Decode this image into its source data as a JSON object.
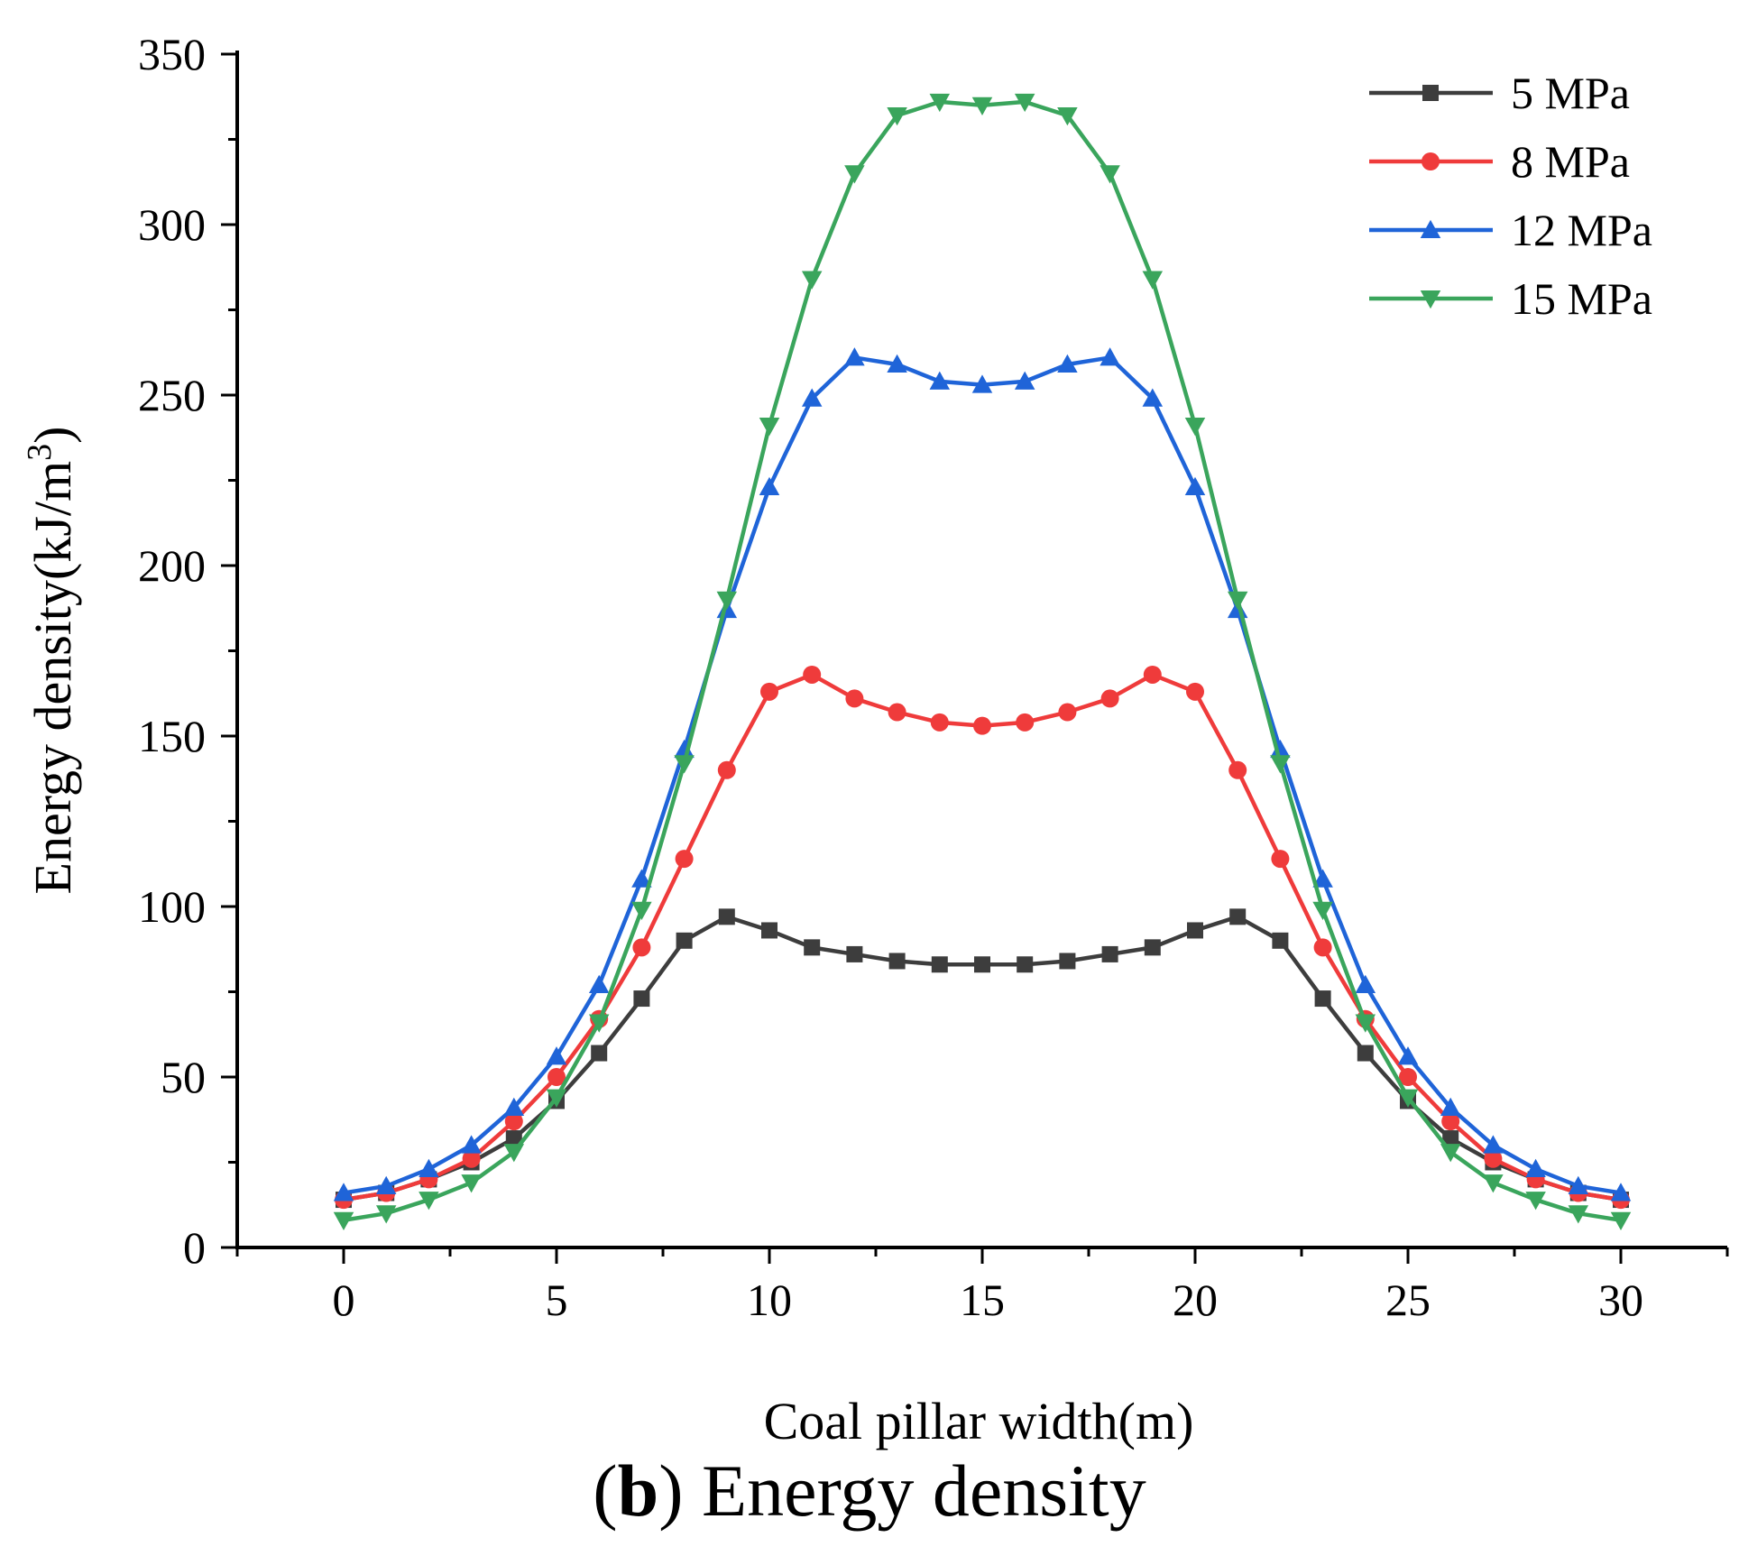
{
  "chart_data": {
    "type": "line",
    "xlabel": "Coal pillar width(m)",
    "ylabel_main": "Energy density(kJ/m",
    "ylabel_sup": "3",
    "ylabel_close": ")",
    "xlim": [
      -2.5,
      32.5
    ],
    "ylim": [
      0,
      350
    ],
    "xticks": [
      0,
      5,
      10,
      15,
      20,
      25,
      30
    ],
    "yticks": [
      0,
      50,
      100,
      150,
      200,
      250,
      300,
      350
    ],
    "legend_position": "top-right",
    "x": [
      0,
      1,
      2,
      3,
      4,
      5,
      6,
      7,
      8,
      9,
      10,
      11,
      12,
      13,
      14,
      15,
      16,
      17,
      18,
      19,
      20,
      21,
      22,
      23,
      24,
      25,
      26,
      27,
      28,
      29,
      30
    ],
    "series": [
      {
        "name": "5 MPa",
        "color": "#3d3d3d",
        "marker": "square",
        "values": [
          14,
          16,
          20,
          25,
          32,
          43,
          57,
          73,
          90,
          97,
          93,
          88,
          86,
          84,
          83,
          83,
          83,
          84,
          86,
          88,
          93,
          97,
          90,
          73,
          57,
          43,
          32,
          25,
          20,
          16,
          14
        ]
      },
      {
        "name": "8 MPa",
        "color": "#ef3b3b",
        "marker": "circle",
        "values": [
          14,
          16,
          20,
          26,
          37,
          50,
          67,
          88,
          114,
          140,
          163,
          168,
          161,
          157,
          154,
          153,
          154,
          157,
          161,
          168,
          163,
          140,
          114,
          88,
          67,
          50,
          37,
          26,
          20,
          16,
          14
        ]
      },
      {
        "name": "12 MPa",
        "color": "#1f64d8",
        "marker": "triangle-up",
        "values": [
          16,
          18,
          23,
          30,
          41,
          56,
          77,
          108,
          146,
          187,
          223,
          249,
          261,
          259,
          254,
          253,
          254,
          259,
          261,
          249,
          223,
          187,
          146,
          108,
          77,
          56,
          41,
          30,
          23,
          18,
          16
        ]
      },
      {
        "name": "15 MPa",
        "color": "#3aa55c",
        "marker": "triangle-down",
        "values": [
          8,
          10,
          14,
          19,
          28,
          44,
          66,
          99,
          142,
          190,
          241,
          284,
          315,
          332,
          336,
          335,
          336,
          332,
          315,
          284,
          241,
          190,
          142,
          99,
          66,
          44,
          28,
          19,
          14,
          10,
          8
        ]
      }
    ]
  },
  "caption": {
    "open": "(",
    "letter": "b",
    "text": ") Energy density"
  }
}
